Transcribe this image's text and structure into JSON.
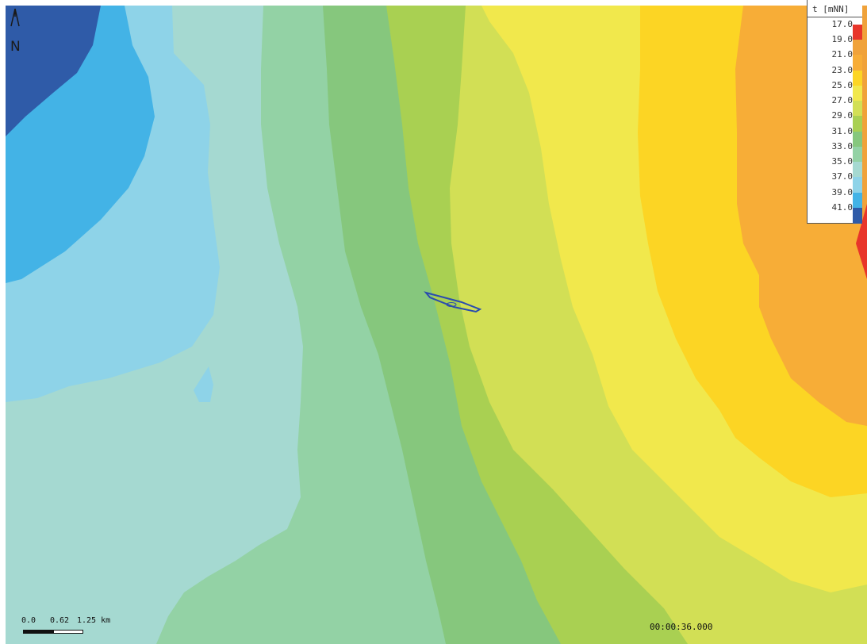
{
  "map": {
    "colors": {
      "c17": "#e8352a",
      "c19": "#f0a23a",
      "c21": "#f7ad37",
      "c23": "#fcd524",
      "c25": "#f1e84c",
      "c27": "#d2df55",
      "c29": "#a9d052",
      "c31": "#86c77d",
      "c33": "#93d2a5",
      "c35": "#a5d9d1",
      "c37": "#8ed3e8",
      "c39": "#43b3e6",
      "c41": "#2f5ba8"
    },
    "feature_color": "#2a4cae"
  },
  "north_arrow": {
    "icon": "north-arrow-icon",
    "letter": "N"
  },
  "legend": {
    "title": "t [mNN]",
    "entries": [
      {
        "label": "17.0",
        "color": "#e8352a"
      },
      {
        "label": "19.0",
        "color": "#f0a23a"
      },
      {
        "label": "21.0",
        "color": "#f7ad37"
      },
      {
        "label": "23.0",
        "color": "#fcd524"
      },
      {
        "label": "25.0",
        "color": "#f1e84c"
      },
      {
        "label": "27.0",
        "color": "#d2df55"
      },
      {
        "label": "29.0",
        "color": "#a9d052"
      },
      {
        "label": "31.0",
        "color": "#86c77d"
      },
      {
        "label": "33.0",
        "color": "#93d2a5"
      },
      {
        "label": "35.0",
        "color": "#a5d9d1"
      },
      {
        "label": "37.0",
        "color": "#8ed3e8"
      },
      {
        "label": "39.0",
        "color": "#43b3e6"
      },
      {
        "label": "41.0",
        "color": "#2f5ba8"
      }
    ]
  },
  "scale_bar": {
    "labels": [
      "0.0",
      "0.62",
      "1.25 km"
    ]
  },
  "time_display": "00:00:36.000"
}
